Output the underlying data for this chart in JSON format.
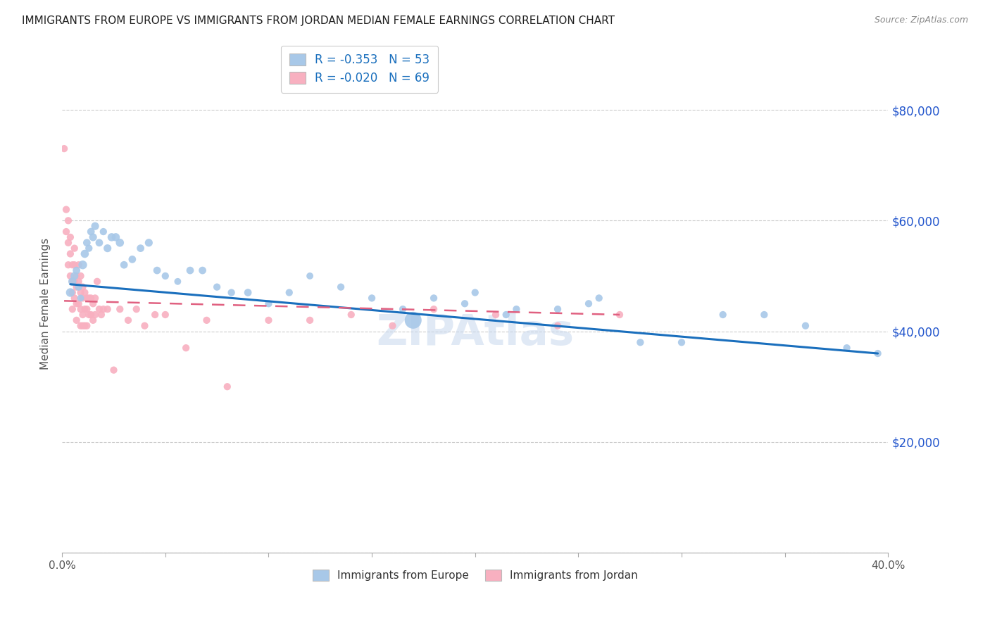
{
  "title": "IMMIGRANTS FROM EUROPE VS IMMIGRANTS FROM JORDAN MEDIAN FEMALE EARNINGS CORRELATION CHART",
  "source": "Source: ZipAtlas.com",
  "ylabel": "Median Female Earnings",
  "yticks": [
    0,
    20000,
    40000,
    60000,
    80000
  ],
  "ytick_labels": [
    "",
    "$20,000",
    "$40,000",
    "$60,000",
    "$80,000"
  ],
  "xlim": [
    0.0,
    0.4
  ],
  "ylim": [
    0,
    90000
  ],
  "europe_R": "-0.353",
  "europe_N": "53",
  "jordan_R": "-0.020",
  "jordan_N": "69",
  "europe_color": "#a8c8e8",
  "jordan_color": "#f8b0c0",
  "europe_line_color": "#1a6fbd",
  "jordan_line_color": "#e06080",
  "background_color": "#ffffff",
  "grid_color": "#cccccc",
  "watermark": "ZIPAtlas",
  "title_color": "#222222",
  "axis_label_color": "#2255cc",
  "europe_scatter_x": [
    0.004,
    0.005,
    0.006,
    0.007,
    0.008,
    0.009,
    0.01,
    0.011,
    0.012,
    0.013,
    0.014,
    0.015,
    0.016,
    0.018,
    0.02,
    0.022,
    0.024,
    0.026,
    0.028,
    0.03,
    0.034,
    0.038,
    0.042,
    0.046,
    0.05,
    0.056,
    0.062,
    0.068,
    0.075,
    0.082,
    0.09,
    0.1,
    0.11,
    0.12,
    0.135,
    0.15,
    0.165,
    0.18,
    0.2,
    0.22,
    0.24,
    0.26,
    0.28,
    0.3,
    0.32,
    0.34,
    0.36,
    0.38,
    0.395,
    0.17,
    0.195,
    0.215,
    0.255
  ],
  "europe_scatter_y": [
    47000,
    49000,
    50000,
    51000,
    48000,
    46000,
    52000,
    54000,
    56000,
    55000,
    58000,
    57000,
    59000,
    56000,
    58000,
    55000,
    57000,
    57000,
    56000,
    52000,
    53000,
    55000,
    56000,
    51000,
    50000,
    49000,
    51000,
    51000,
    48000,
    47000,
    47000,
    45000,
    47000,
    50000,
    48000,
    46000,
    44000,
    46000,
    47000,
    44000,
    44000,
    46000,
    38000,
    38000,
    43000,
    43000,
    41000,
    37000,
    36000,
    42000,
    45000,
    43000,
    45000
  ],
  "europe_scatter_size": [
    80,
    70,
    65,
    60,
    55,
    50,
    80,
    70,
    60,
    55,
    60,
    65,
    65,
    60,
    55,
    65,
    70,
    70,
    70,
    60,
    60,
    60,
    65,
    60,
    55,
    50,
    60,
    60,
    55,
    55,
    60,
    55,
    55,
    50,
    55,
    55,
    55,
    55,
    55,
    55,
    55,
    55,
    55,
    55,
    55,
    55,
    55,
    55,
    55,
    300,
    55,
    55,
    55
  ],
  "jordan_scatter_x": [
    0.001,
    0.002,
    0.002,
    0.003,
    0.003,
    0.003,
    0.004,
    0.004,
    0.004,
    0.005,
    0.005,
    0.005,
    0.005,
    0.006,
    0.006,
    0.006,
    0.006,
    0.007,
    0.007,
    0.007,
    0.007,
    0.008,
    0.008,
    0.008,
    0.009,
    0.009,
    0.009,
    0.009,
    0.01,
    0.01,
    0.01,
    0.01,
    0.011,
    0.011,
    0.011,
    0.012,
    0.012,
    0.012,
    0.013,
    0.013,
    0.014,
    0.014,
    0.015,
    0.015,
    0.016,
    0.016,
    0.017,
    0.018,
    0.019,
    0.02,
    0.022,
    0.025,
    0.028,
    0.032,
    0.036,
    0.04,
    0.045,
    0.05,
    0.06,
    0.07,
    0.08,
    0.1,
    0.12,
    0.14,
    0.16,
    0.18,
    0.21,
    0.24,
    0.27
  ],
  "jordan_scatter_y": [
    73000,
    62000,
    58000,
    60000,
    56000,
    52000,
    57000,
    54000,
    50000,
    52000,
    49000,
    47000,
    44000,
    55000,
    52000,
    49000,
    46000,
    50000,
    48000,
    45000,
    42000,
    52000,
    49000,
    45000,
    50000,
    47000,
    44000,
    41000,
    48000,
    46000,
    43000,
    41000,
    47000,
    44000,
    41000,
    46000,
    44000,
    41000,
    46000,
    43000,
    46000,
    43000,
    45000,
    42000,
    46000,
    43000,
    49000,
    44000,
    43000,
    44000,
    44000,
    33000,
    44000,
    42000,
    44000,
    41000,
    43000,
    43000,
    37000,
    42000,
    30000,
    42000,
    42000,
    43000,
    41000,
    44000,
    43000,
    41000,
    43000
  ],
  "jordan_scatter_size": [
    55,
    55,
    55,
    55,
    55,
    55,
    55,
    55,
    55,
    55,
    55,
    55,
    55,
    55,
    55,
    55,
    55,
    55,
    55,
    55,
    55,
    55,
    55,
    55,
    55,
    55,
    55,
    55,
    55,
    55,
    55,
    55,
    55,
    55,
    55,
    55,
    55,
    55,
    55,
    55,
    55,
    55,
    55,
    55,
    55,
    55,
    55,
    55,
    55,
    55,
    55,
    55,
    55,
    55,
    55,
    55,
    55,
    55,
    55,
    55,
    55,
    55,
    55,
    55,
    55,
    55,
    55,
    55,
    55
  ],
  "europe_line_x": [
    0.004,
    0.395
  ],
  "europe_line_y": [
    48500,
    36000
  ],
  "jordan_line_x": [
    0.001,
    0.27
  ],
  "jordan_line_y": [
    45500,
    43000
  ],
  "xtick_vals": [
    0.0,
    0.05,
    0.1,
    0.15,
    0.2,
    0.25,
    0.3,
    0.35,
    0.4
  ],
  "xtick_labels": [
    "0.0%",
    "",
    "",
    "",
    "",
    "",
    "",
    "",
    "40.0%"
  ]
}
